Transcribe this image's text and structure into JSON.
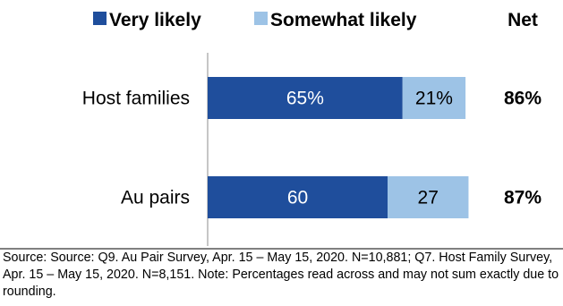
{
  "chart_data": {
    "type": "bar",
    "orientation": "horizontal",
    "stacked": true,
    "categories": [
      "Host families",
      "Au pairs"
    ],
    "series": [
      {
        "name": "Very likely",
        "color": "#1F4E9C",
        "values": [
          65,
          60
        ],
        "labels": [
          "65%",
          "60"
        ]
      },
      {
        "name": "Somewhat likely",
        "color": "#9DC3E6",
        "values": [
          21,
          27
        ],
        "labels": [
          "21%",
          "27"
        ]
      }
    ],
    "net": {
      "header": "Net",
      "values": [
        "86%",
        "87%"
      ]
    },
    "xlim": [
      0,
      100
    ],
    "grid": false,
    "legend_position": "top"
  },
  "footnote": "Source: Source: Q9. Au Pair Survey, Apr. 15 – May 15, 2020. N=10,881; Q7. Host Family Survey, Apr. 15 – May 15, 2020. N=8,151. Note: Percentages read across and may not sum exactly due to rounding."
}
